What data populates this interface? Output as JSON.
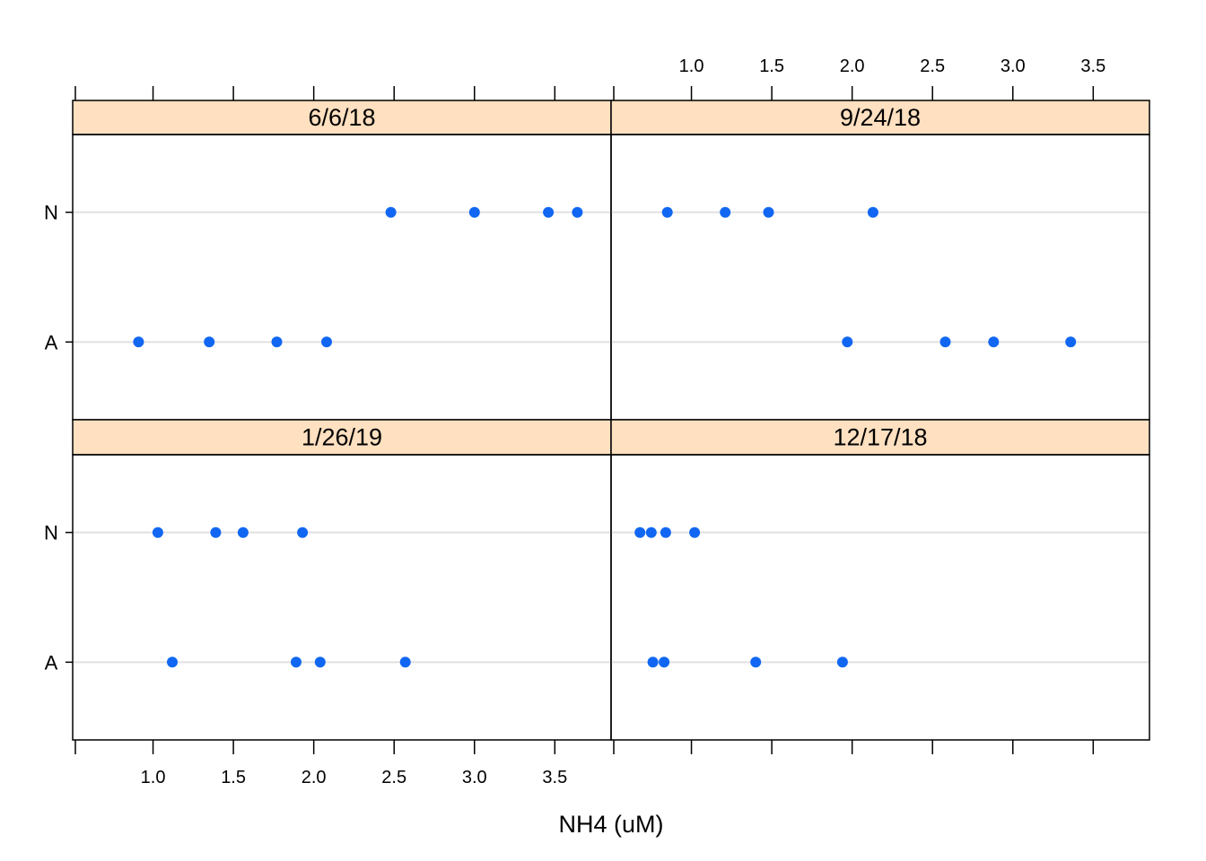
{
  "chart_data": {
    "type": "scatter",
    "layout": "2x2 lattice dotplot",
    "xlabel": "NH4 (uM)",
    "ylabel": "",
    "xlim": [
      0.5,
      3.85
    ],
    "x_ticks": [
      1.0,
      1.5,
      2.0,
      2.5,
      3.0,
      3.5
    ],
    "x_tick_labels": [
      "1.0",
      "1.5",
      "2.0",
      "2.5",
      "3.0",
      "3.5"
    ],
    "categories": [
      "N",
      "A"
    ],
    "grid": "horizontal reference lines",
    "strip_color": "#FFE0C0",
    "point_color": "#1167F2",
    "panels": [
      {
        "title": "6/6/18",
        "series": [
          {
            "category": "N",
            "values": [
              2.48,
              3.0,
              3.46,
              3.64
            ]
          },
          {
            "category": "A",
            "values": [
              0.91,
              1.35,
              1.77,
              2.08
            ]
          }
        ]
      },
      {
        "title": "9/24/18",
        "series": [
          {
            "category": "N",
            "values": [
              0.85,
              1.21,
              1.48,
              2.13
            ]
          },
          {
            "category": "A",
            "values": [
              1.97,
              2.58,
              2.88,
              3.36
            ]
          }
        ]
      },
      {
        "title": "1/26/19",
        "series": [
          {
            "category": "N",
            "values": [
              1.03,
              1.39,
              1.56,
              1.93
            ]
          },
          {
            "category": "A",
            "values": [
              1.12,
              1.89,
              2.04,
              2.57
            ]
          }
        ]
      },
      {
        "title": "12/17/18",
        "series": [
          {
            "category": "N",
            "values": [
              0.68,
              0.75,
              0.84,
              1.02
            ]
          },
          {
            "category": "A",
            "values": [
              0.76,
              0.83,
              1.4,
              1.94
            ]
          }
        ]
      }
    ]
  }
}
